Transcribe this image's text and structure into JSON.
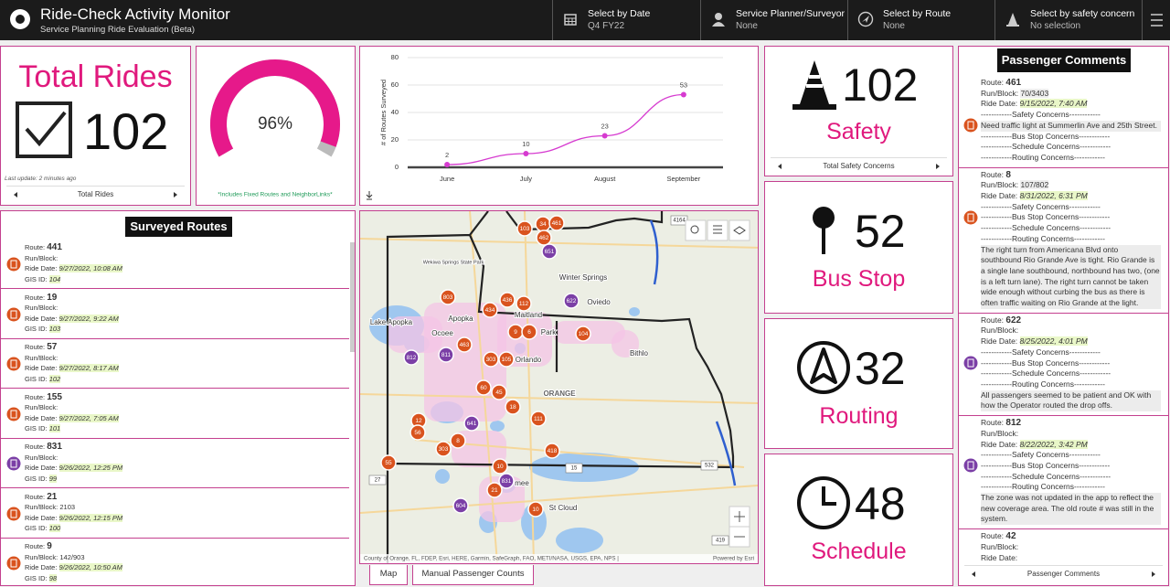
{
  "header": {
    "title": "Ride-Check Activity Monitor",
    "subtitle": "Service Planning Ride Evaluation (Beta)",
    "filters": [
      {
        "label": "Select by Date",
        "value": "Q4 FY22"
      },
      {
        "label": "Service Planner/Surveyor",
        "value": "None"
      },
      {
        "label": "Select by Route",
        "value": "None"
      },
      {
        "label": "Select by safety concern",
        "value": "No selection"
      }
    ]
  },
  "total_rides": {
    "title": "Total Rides",
    "value": 102,
    "last_update": "Last update: 2 minutes ago",
    "footer": "Total Rides"
  },
  "gauge": {
    "value": 96,
    "value_label": "96%",
    "note": "*Includes Fixed Routes and NeighborLinks*",
    "color": "#e6198a"
  },
  "chart_data": {
    "type": "line",
    "y_label": "# of Routes Surveyed",
    "categories": [
      "June",
      "July",
      "August",
      "September"
    ],
    "series": [
      {
        "name": "Routes Surveyed",
        "color": "#d63bd0",
        "values": [
          2,
          10,
          23,
          53
        ]
      }
    ],
    "ylim": [
      0,
      80
    ],
    "yticks": [
      0,
      20,
      40,
      60,
      80
    ],
    "grid": true
  },
  "concerns": [
    {
      "value": 102,
      "label": "Safety",
      "footer": "Total Safety Concerns"
    },
    {
      "value": 52,
      "label": "Bus Stop"
    },
    {
      "value": 32,
      "label": "Routing"
    },
    {
      "value": 48,
      "label": "Schedule"
    }
  ],
  "surveyed_routes": {
    "title": "Surveyed Routes",
    "field_labels": {
      "route": "Route:",
      "run_block": "Run/Block:",
      "ride_date": "Ride Date:",
      "gis_id": "GIS ID:"
    },
    "items": [
      {
        "route": "441",
        "ride_date": "9/27/2022, 10:08 AM",
        "gis_id": "104",
        "icon_color": "#d9531e"
      },
      {
        "route": "19",
        "ride_date": "9/27/2022, 9:22 AM",
        "gis_id": "103",
        "icon_color": "#d9531e"
      },
      {
        "route": "57",
        "ride_date": "9/27/2022, 8:17 AM",
        "gis_id": "102",
        "icon_color": "#d9531e"
      },
      {
        "route": "155",
        "ride_date": "9/27/2022, 7:05 AM",
        "gis_id": "101",
        "icon_color": "#d9531e"
      },
      {
        "route": "831",
        "ride_date": "9/26/2022, 12:25 PM",
        "gis_id": "99",
        "icon_color": "#7b3fa6"
      },
      {
        "route": "21",
        "run_block": "2103",
        "ride_date": "9/26/2022, 12:15 PM",
        "gis_id": "100",
        "icon_color": "#d9531e"
      },
      {
        "route": "9",
        "run_block": "142/903",
        "ride_date": "9/26/2022, 10:50 AM",
        "gis_id": "98",
        "icon_color": "#d9531e"
      }
    ]
  },
  "passenger_comments": {
    "title": "Passenger Comments",
    "footer": "Passenger Comments",
    "field_labels": {
      "route": "Route:",
      "run_block": "Run/Block:",
      "ride_date": "Ride Date:"
    },
    "items": [
      {
        "route": "461",
        "run_block": "70/3403",
        "ride_date": "9/15/2022, 7:40 AM",
        "icon_color": "#d9531e",
        "lines": [
          "------------Safety Concerns------------",
          "Need traffic light at Summerlin Ave and 25th Street.",
          "------------Bus Stop Concerns------------",
          "------------Schedule Concerns------------",
          "------------Routing Concerns------------"
        ]
      },
      {
        "route": "8",
        "run_block": "107/802",
        "ride_date": "8/31/2022, 6:31 PM",
        "icon_color": "#d9531e",
        "lines": [
          "------------Safety Concerns------------",
          "------------Bus Stop Concerns------------",
          "------------Schedule Concerns------------",
          "------------Routing Concerns------------",
          "The right turn from Americana Blvd onto southbound Rio Grande Ave is tight. Rio Grande is a single lane southbound, northbound has two, (one is a left turn lane). The right turn cannot be taken wide enough without curbing the bus as there is often traffic waiting on Rio Grande at the light."
        ]
      },
      {
        "route": "622",
        "ride_date": "8/25/2022, 4:01 PM",
        "icon_color": "#7b3fa6",
        "lines": [
          "------------Safety Concerns------------",
          "------------Bus Stop Concerns------------",
          "------------Schedule Concerns------------",
          "------------Routing Concerns------------",
          "All passengers seemed to be patient and OK with how the Operator routed the drop offs."
        ]
      },
      {
        "route": "812",
        "ride_date": "8/22/2022, 3:42 PM",
        "icon_color": "#7b3fa6",
        "lines": [
          "------------Safety Concerns------------",
          "------------Bus Stop Concerns------------",
          "------------Schedule Concerns------------",
          "------------Routing Concerns------------",
          "The zone was not updated in the app to reflect the new coverage area. The old route # was still in the system."
        ]
      },
      {
        "route": "42",
        "icon_color": "#d9531e"
      }
    ]
  },
  "map": {
    "places": [
      "Winter Springs",
      "Oviedo",
      "Apopka",
      "Maitland",
      "Orlando",
      "Ocoee",
      "Lake Apopka",
      "Bithlo",
      "ORANGE",
      "St Cloud",
      "mee",
      "Wekiwa Springs State Park",
      "Park",
      "4164",
      "15",
      "532",
      "27",
      "419"
    ],
    "markers": [
      {
        "label": "103",
        "color": "#d9531e"
      },
      {
        "label": "34",
        "color": "#d9531e"
      },
      {
        "label": "461",
        "color": "#d9531e"
      },
      {
        "label": "462",
        "color": "#d9531e"
      },
      {
        "label": "651",
        "color": "#7b3fa6"
      },
      {
        "label": "803",
        "color": "#d9531e"
      },
      {
        "label": "436",
        "color": "#d9531e"
      },
      {
        "label": "112",
        "color": "#d9531e"
      },
      {
        "label": "434",
        "color": "#d9531e"
      },
      {
        "label": "622",
        "color": "#7b3fa6"
      },
      {
        "label": "9",
        "color": "#d9531e"
      },
      {
        "label": "6",
        "color": "#d9531e"
      },
      {
        "label": "104",
        "color": "#d9531e"
      },
      {
        "label": "463",
        "color": "#d9531e"
      },
      {
        "label": "812",
        "color": "#7b3fa6"
      },
      {
        "label": "811",
        "color": "#7b3fa6"
      },
      {
        "label": "303",
        "color": "#d9531e"
      },
      {
        "label": "105",
        "color": "#d9531e"
      },
      {
        "label": "60",
        "color": "#d9531e"
      },
      {
        "label": "45",
        "color": "#d9531e"
      },
      {
        "label": "18",
        "color": "#d9531e"
      },
      {
        "label": "111",
        "color": "#d9531e"
      },
      {
        "label": "12",
        "color": "#d9531e"
      },
      {
        "label": "56",
        "color": "#d9531e"
      },
      {
        "label": "641",
        "color": "#7b3fa6"
      },
      {
        "label": "8",
        "color": "#d9531e"
      },
      {
        "label": "303",
        "color": "#d9531e"
      },
      {
        "label": "418",
        "color": "#d9531e"
      },
      {
        "label": "55",
        "color": "#d9531e"
      },
      {
        "label": "10",
        "color": "#d9531e"
      },
      {
        "label": "831",
        "color": "#7b3fa6"
      },
      {
        "label": "21",
        "color": "#d9531e"
      },
      {
        "label": "604",
        "color": "#7b3fa6"
      },
      {
        "label": "10",
        "color": "#d9531e"
      }
    ],
    "attribution": "County of Orange, FL, FDEP, Esri, HERE, Garmin, SafeGraph, FAO, METI/NASA, USGS, EPA, NPS |",
    "powered_by": "Powered by Esri",
    "tabs": [
      "Map",
      "Manual Passenger Counts"
    ]
  }
}
